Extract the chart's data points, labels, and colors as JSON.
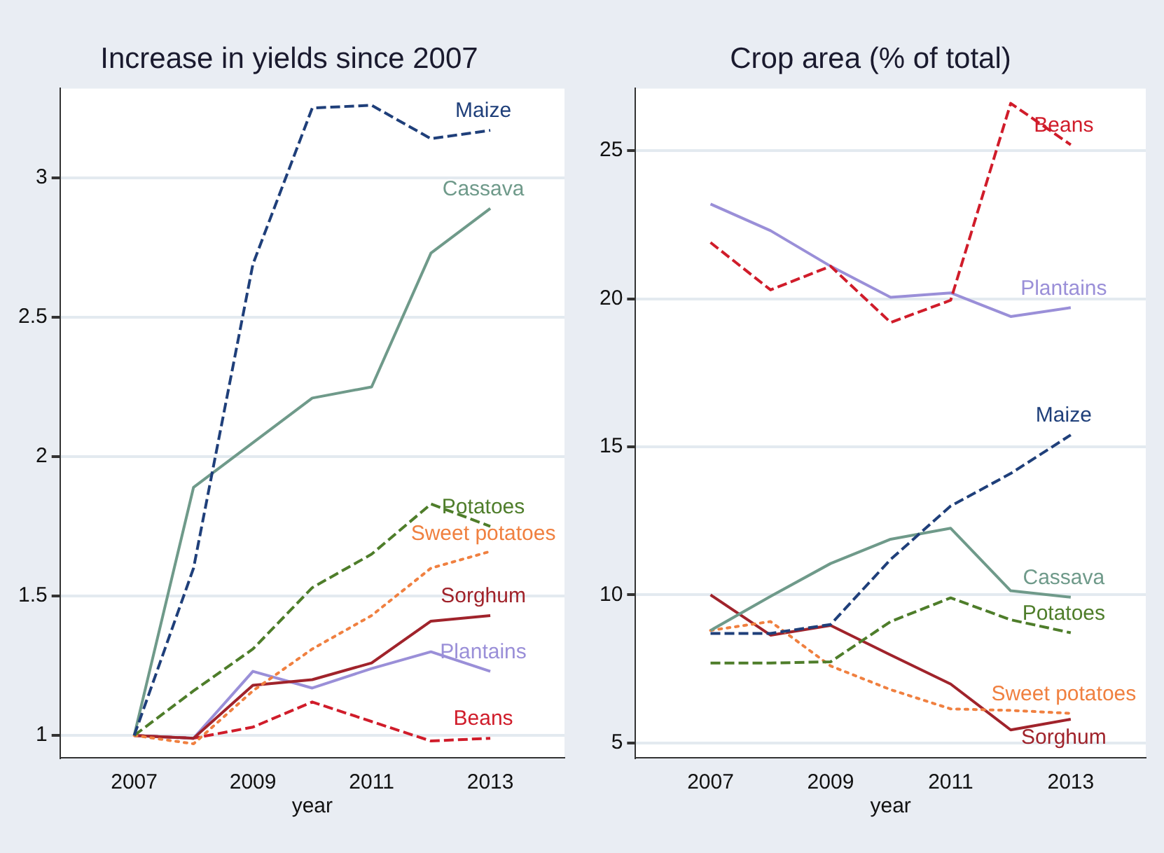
{
  "chart_data": [
    {
      "type": "line",
      "title": "Increase in yields since 2007",
      "xlabel": "year",
      "x": [
        2007,
        2008,
        2009,
        2010,
        2011,
        2012,
        2013
      ],
      "xlim": [
        2005.75,
        2014.25
      ],
      "xticks": [
        2007,
        2009,
        2011,
        2013
      ],
      "ylim": [
        0.92,
        3.32
      ],
      "yticks": [
        1,
        1.5,
        2,
        2.5,
        3
      ],
      "grid": "y",
      "legend": false,
      "marker": "none",
      "series": [
        {
          "name": "Maize",
          "color": "#1f3f7a",
          "line_style": "dashed",
          "values": [
            1,
            1.6,
            2.69,
            3.25,
            3.26,
            3.14,
            3.17
          ]
        },
        {
          "name": "Cassava",
          "color": "#6f9a8a",
          "line_style": "solid",
          "values": [
            1,
            1.89,
            2.05,
            2.21,
            2.25,
            2.73,
            2.89
          ]
        },
        {
          "name": "Potatoes",
          "color": "#4e7d2a",
          "line_style": "dashed",
          "values": [
            1,
            1.16,
            1.31,
            1.53,
            1.65,
            1.83,
            1.75
          ]
        },
        {
          "name": "Sweet potatoes",
          "color": "#f08040",
          "line_style": "dotted",
          "values": [
            1,
            0.97,
            1.16,
            1.31,
            1.43,
            1.6,
            1.66
          ]
        },
        {
          "name": "Sorghum",
          "color": "#a0232b",
          "line_style": "solid",
          "values": [
            1,
            0.99,
            1.18,
            1.2,
            1.26,
            1.41,
            1.43
          ]
        },
        {
          "name": "Plantains",
          "color": "#9a8fd8",
          "line_style": "solid",
          "values": [
            1,
            0.99,
            1.23,
            1.17,
            1.24,
            1.3,
            1.23
          ]
        },
        {
          "name": "Beans",
          "color": "#d01c2a",
          "line_style": "dashed",
          "values": [
            1,
            0.99,
            1.03,
            1.12,
            1.05,
            0.98,
            0.99
          ]
        }
      ]
    },
    {
      "type": "line",
      "title": "Crop area (% of total)",
      "xlabel": "year",
      "x": [
        2007,
        2008,
        2009,
        2010,
        2011,
        2012,
        2013
      ],
      "xlim": [
        2005.75,
        2014.25
      ],
      "xticks": [
        2007,
        2009,
        2011,
        2013
      ],
      "ylim": [
        4.5,
        27.1
      ],
      "yticks": [
        5,
        10,
        15,
        20,
        25
      ],
      "grid": "y",
      "legend": false,
      "marker": "none",
      "series": [
        {
          "name": "Beans",
          "color": "#d01c2a",
          "line_style": "dashed",
          "values": [
            21.9,
            20.3,
            21.1,
            19.2,
            19.95,
            26.6,
            25.2
          ]
        },
        {
          "name": "Plantains",
          "color": "#9a8fd8",
          "line_style": "solid",
          "values": [
            23.2,
            22.3,
            21.1,
            20.05,
            20.2,
            19.4,
            19.7
          ]
        },
        {
          "name": "Maize",
          "color": "#1f3f7a",
          "line_style": "dashed",
          "values": [
            8.7,
            8.7,
            9.0,
            11.2,
            13.0,
            14.1,
            15.4
          ]
        },
        {
          "name": "Cassava",
          "color": "#6f9a8a",
          "line_style": "solid",
          "values": [
            8.8,
            9.95,
            11.06,
            11.88,
            12.25,
            10.14,
            9.92
          ]
        },
        {
          "name": "Potatoes",
          "color": "#4e7d2a",
          "line_style": "dashed",
          "values": [
            7.7,
            7.7,
            7.74,
            9.1,
            9.9,
            9.16,
            8.72
          ]
        },
        {
          "name": "Sweet potatoes",
          "color": "#f08040",
          "line_style": "dotted",
          "values": [
            8.8,
            9.1,
            7.6,
            6.8,
            6.15,
            6.1,
            6.0
          ]
        },
        {
          "name": "Sorghum",
          "color": "#a0232b",
          "line_style": "solid",
          "values": [
            10.0,
            8.64,
            8.97,
            7.97,
            6.99,
            5.44,
            5.8
          ]
        }
      ]
    }
  ]
}
